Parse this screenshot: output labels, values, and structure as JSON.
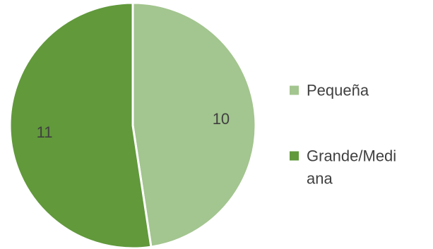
{
  "chart_data": {
    "type": "pie",
    "title": "",
    "legend_position": "right",
    "slices": [
      {
        "label": "Pequeña",
        "value": 10,
        "color": "#a3c58f"
      },
      {
        "label": "Grande/Mediana",
        "value": 11,
        "color": "#61993b"
      }
    ],
    "legend": {
      "entries": [
        {
          "lines": [
            "Pequeña"
          ]
        },
        {
          "lines": [
            "Grande/Medi",
            "ana"
          ]
        }
      ]
    }
  }
}
